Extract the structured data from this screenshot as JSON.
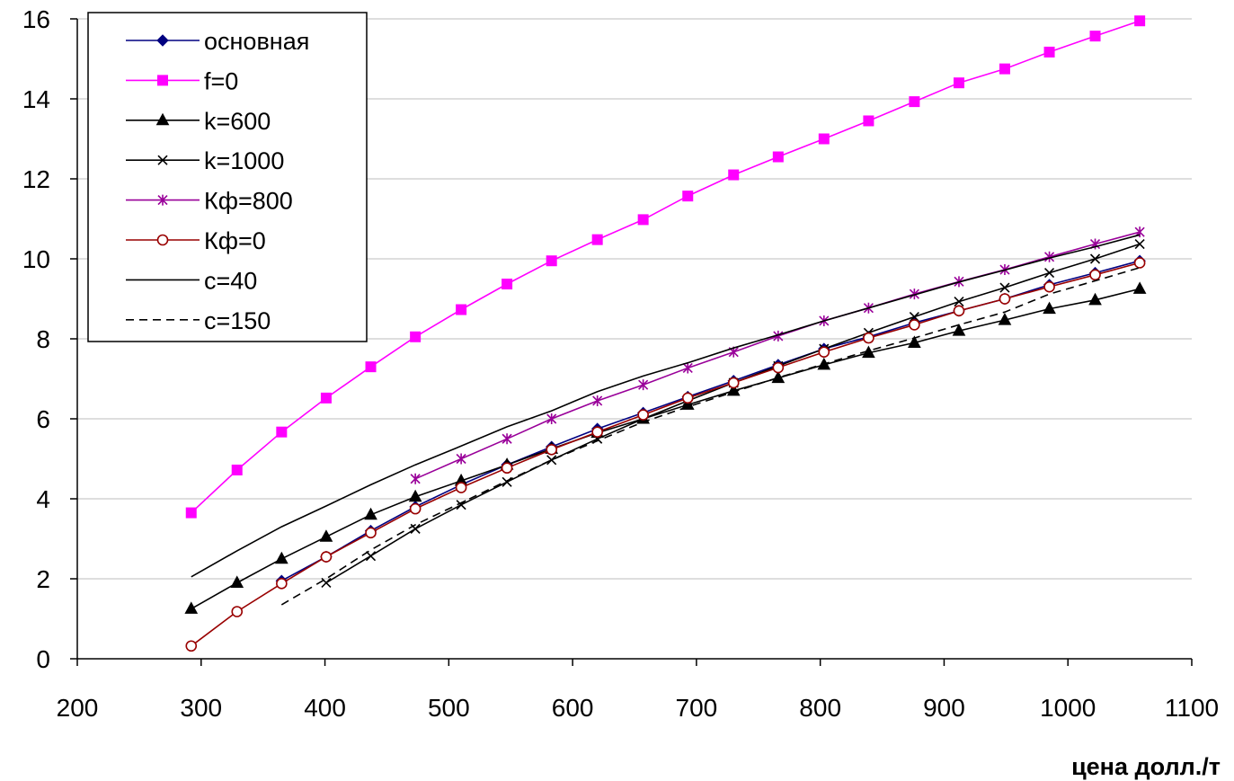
{
  "chart_data": {
    "type": "line",
    "title": "",
    "xlabel": "цена  долл./т",
    "ylabel": "",
    "xlim": [
      200,
      1100
    ],
    "ylim": [
      0,
      16
    ],
    "x_ticks": [
      200,
      300,
      400,
      500,
      600,
      700,
      800,
      900,
      1000,
      1100
    ],
    "y_ticks": [
      0,
      2,
      4,
      6,
      8,
      10,
      12,
      14,
      16
    ],
    "grid": "horizontal",
    "legend_position": "top-left",
    "series": [
      {
        "name": "основная",
        "color": "#000080",
        "marker": "diamond",
        "dash": "solid",
        "x": [
          365,
          401,
          437,
          473,
          510,
          547,
          583,
          620,
          657,
          693,
          730,
          766,
          803,
          839,
          876,
          912,
          949,
          985,
          1022,
          1058
        ],
        "y": [
          1.95,
          2.55,
          3.2,
          3.8,
          4.35,
          4.85,
          5.3,
          5.75,
          6.15,
          6.55,
          6.95,
          7.35,
          7.75,
          8.05,
          8.4,
          8.7,
          9.0,
          9.35,
          9.65,
          9.95
        ]
      },
      {
        "name": "f=0",
        "color": "#FF00FF",
        "marker": "square",
        "dash": "solid",
        "x": [
          292,
          329,
          365,
          401,
          437,
          473,
          510,
          547,
          583,
          620,
          657,
          693,
          730,
          766,
          803,
          839,
          876,
          912,
          949,
          985,
          1022,
          1058
        ],
        "y": [
          3.65,
          4.72,
          5.67,
          6.52,
          7.3,
          8.05,
          8.73,
          9.37,
          9.95,
          10.48,
          10.98,
          11.57,
          12.1,
          12.55,
          13.0,
          13.45,
          13.93,
          14.4,
          14.75,
          15.17,
          15.57,
          15.95
        ]
      },
      {
        "name": "k=600",
        "color": "#000000",
        "marker": "triangle",
        "dash": "solid",
        "x": [
          292,
          329,
          365,
          401,
          437,
          473,
          510,
          547,
          583,
          620,
          657,
          693,
          730,
          766,
          803,
          839,
          876,
          912,
          949,
          985,
          1022,
          1058
        ],
        "y": [
          1.25,
          1.9,
          2.5,
          3.05,
          3.6,
          4.05,
          4.45,
          4.85,
          5.25,
          5.65,
          6.0,
          6.35,
          6.7,
          7.02,
          7.35,
          7.65,
          7.9,
          8.2,
          8.47,
          8.75,
          8.97,
          9.25
        ]
      },
      {
        "name": "k=1000",
        "color": "#000000",
        "marker": "cross",
        "dash": "solid",
        "x": [
          401,
          437,
          473,
          510,
          547,
          583,
          620,
          657,
          693,
          730,
          766,
          803,
          839,
          876,
          912,
          949,
          985,
          1022,
          1058
        ],
        "y": [
          1.9,
          2.57,
          3.25,
          3.85,
          4.42,
          4.97,
          5.5,
          6.0,
          6.45,
          6.9,
          7.32,
          7.75,
          8.15,
          8.55,
          8.93,
          9.28,
          9.65,
          10.0,
          10.37
        ]
      },
      {
        "name": "Кф=800",
        "color": "#990099",
        "marker": "star",
        "dash": "solid",
        "x": [
          473,
          510,
          547,
          583,
          620,
          657,
          693,
          730,
          766,
          803,
          839,
          876,
          912,
          949,
          985,
          1022,
          1058
        ],
        "y": [
          4.5,
          5.0,
          5.5,
          6.0,
          6.45,
          6.85,
          7.27,
          7.67,
          8.07,
          8.45,
          8.77,
          9.12,
          9.43,
          9.73,
          10.05,
          10.37,
          10.67
        ]
      },
      {
        "name": "Кф=0",
        "color": "#990000",
        "marker": "circle",
        "dash": "solid",
        "x": [
          292,
          329,
          365,
          401,
          437,
          473,
          510,
          547,
          583,
          620,
          657,
          693,
          730,
          766,
          803,
          839,
          876,
          912,
          949,
          985,
          1022,
          1058
        ],
        "y": [
          0.32,
          1.18,
          1.88,
          2.55,
          3.15,
          3.75,
          4.28,
          4.77,
          5.23,
          5.67,
          6.1,
          6.52,
          6.9,
          7.28,
          7.67,
          8.02,
          8.35,
          8.7,
          9.0,
          9.3,
          9.6,
          9.9
        ]
      },
      {
        "name": "c=40",
        "color": "#000000",
        "marker": "none",
        "dash": "solid",
        "x": [
          292,
          329,
          365,
          401,
          437,
          473,
          510,
          547,
          583,
          620,
          657,
          693,
          730,
          766,
          803,
          839,
          876,
          912,
          949,
          985,
          1022,
          1058
        ],
        "y": [
          2.05,
          2.7,
          3.3,
          3.82,
          4.35,
          4.85,
          5.32,
          5.8,
          6.2,
          6.68,
          7.07,
          7.4,
          7.77,
          8.1,
          8.45,
          8.77,
          9.1,
          9.42,
          9.72,
          10.02,
          10.3,
          10.6
        ]
      },
      {
        "name": "c=150",
        "color": "#000000",
        "marker": "none",
        "dash": "dashed",
        "x": [
          365,
          401,
          437,
          473,
          510,
          547,
          583,
          620,
          657,
          693,
          730,
          766,
          803,
          839,
          876,
          912,
          949,
          985,
          1022,
          1058
        ],
        "y": [
          1.35,
          2.0,
          2.72,
          3.35,
          3.9,
          4.45,
          4.97,
          5.45,
          5.92,
          6.3,
          6.67,
          7.03,
          7.37,
          7.7,
          8.02,
          8.35,
          8.67,
          9.12,
          9.45,
          9.78
        ]
      }
    ]
  }
}
